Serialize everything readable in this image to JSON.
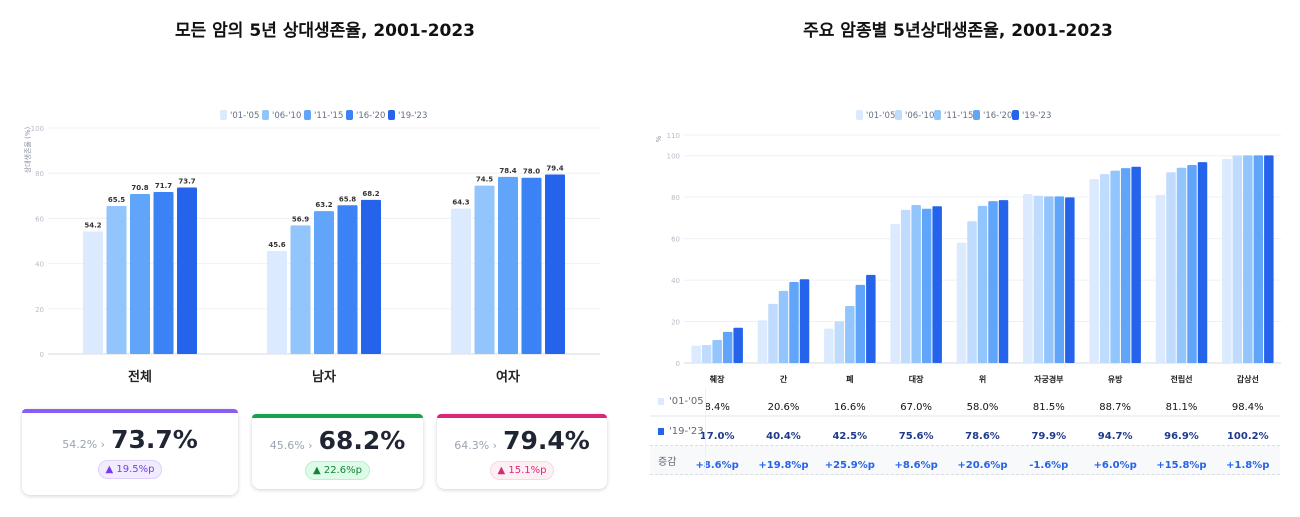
{
  "left": {
    "title": "모든 암의 5년 상대생존율, 2001-2023",
    "cards": [
      {
        "from": "54.2%",
        "arrow": "›",
        "to": "73.7%",
        "change": "▲ 19.5%p",
        "color": "#8b5cf6",
        "badge_bg": "#f1ecff",
        "badge_fg": "#7c3aed"
      },
      {
        "from": "45.6%",
        "arrow": "›",
        "to": "68.2%",
        "change": "▲ 22.6%p",
        "color": "#16a34a",
        "badge_bg": "#dcfce7",
        "badge_fg": "#15803d"
      },
      {
        "from": "64.3%",
        "arrow": "›",
        "to": "79.4%",
        "change": "▲ 15.1%p",
        "color": "#db2777",
        "badge_bg": "#fdf0f5",
        "badge_fg": "#db2777"
      }
    ]
  },
  "right": {
    "title": "주요 암종별 5년상대생존율, 2001-2023",
    "table": {
      "rows": [
        {
          "label": "'01-'05",
          "color": "#dbeafe",
          "values": [
            "8.4%",
            "20.6%",
            "16.6%",
            "67.0%",
            "58.0%",
            "81.5%",
            "88.7%",
            "81.1%",
            "98.4%"
          ]
        },
        {
          "label": "'19-'23",
          "color": "#2563eb",
          "values": [
            "17.0%",
            "40.4%",
            "42.5%",
            "75.6%",
            "78.6%",
            "79.9%",
            "94.7%",
            "96.9%",
            "100.2%"
          ]
        },
        {
          "label": "증감",
          "values": [
            "+8.6%p",
            "+19.8%p",
            "+25.9%p",
            "+8.6%p",
            "+20.6%p",
            "-1.6%p",
            "+6.0%p",
            "+15.8%p",
            "+1.8%p"
          ]
        }
      ]
    }
  },
  "chart_data": [
    {
      "type": "bar",
      "title": "모든 암의 5년 상대생존율, 2001-2023",
      "ylabel": "상대생존율 (%)",
      "ylim": [
        0,
        100
      ],
      "yticks": [
        0,
        20,
        40,
        60,
        80,
        100
      ],
      "grid": true,
      "legend": "top",
      "categories": [
        "전체",
        "남자",
        "여자"
      ],
      "series": [
        {
          "name": "'01-'05",
          "color": "#dbeafe",
          "values": [
            54.2,
            45.6,
            64.3
          ]
        },
        {
          "name": "'06-'10",
          "color": "#93c5fd",
          "values": [
            65.5,
            56.9,
            74.5
          ]
        },
        {
          "name": "'11-'15",
          "color": "#60a5fa",
          "values": [
            70.8,
            63.2,
            78.4
          ]
        },
        {
          "name": "'16-'20",
          "color": "#3b82f6",
          "values": [
            71.7,
            65.8,
            78.0
          ]
        },
        {
          "name": "'19-'23",
          "color": "#2563eb",
          "values": [
            73.7,
            68.2,
            79.4
          ]
        }
      ]
    },
    {
      "type": "bar",
      "title": "주요 암종별 5년상대생존율, 2001-2023",
      "ylabel": "%",
      "ylim": [
        0,
        110
      ],
      "yticks": [
        0,
        20,
        40,
        60,
        80,
        100,
        110
      ],
      "grid": true,
      "legend": "top",
      "categories": [
        "췌장",
        "간",
        "폐",
        "대장",
        "위",
        "자궁경부",
        "유방",
        "전립선",
        "갑상선"
      ],
      "series": [
        {
          "name": "'01-'05",
          "color": "#dbeafe",
          "values": [
            8.4,
            20.6,
            16.6,
            67.0,
            58.0,
            81.5,
            88.7,
            81.1,
            98.4
          ]
        },
        {
          "name": "'06-'10",
          "color": "#bfdbfe",
          "values": [
            8.7,
            28.5,
            20.1,
            73.9,
            68.4,
            80.7,
            91.1,
            92.0,
            100.1
          ]
        },
        {
          "name": "'11-'15",
          "color": "#93c5fd",
          "values": [
            11.1,
            34.8,
            27.5,
            76.2,
            75.8,
            80.4,
            92.8,
            94.2,
            100.2
          ]
        },
        {
          "name": "'16-'20",
          "color": "#60a5fa",
          "values": [
            15.0,
            39.1,
            37.7,
            74.4,
            78.1,
            80.4,
            94.0,
            95.5,
            100.2
          ]
        },
        {
          "name": "'19-'23",
          "color": "#2563eb",
          "values": [
            17.0,
            40.4,
            42.5,
            75.6,
            78.6,
            79.9,
            94.7,
            96.9,
            100.2
          ]
        }
      ]
    }
  ]
}
